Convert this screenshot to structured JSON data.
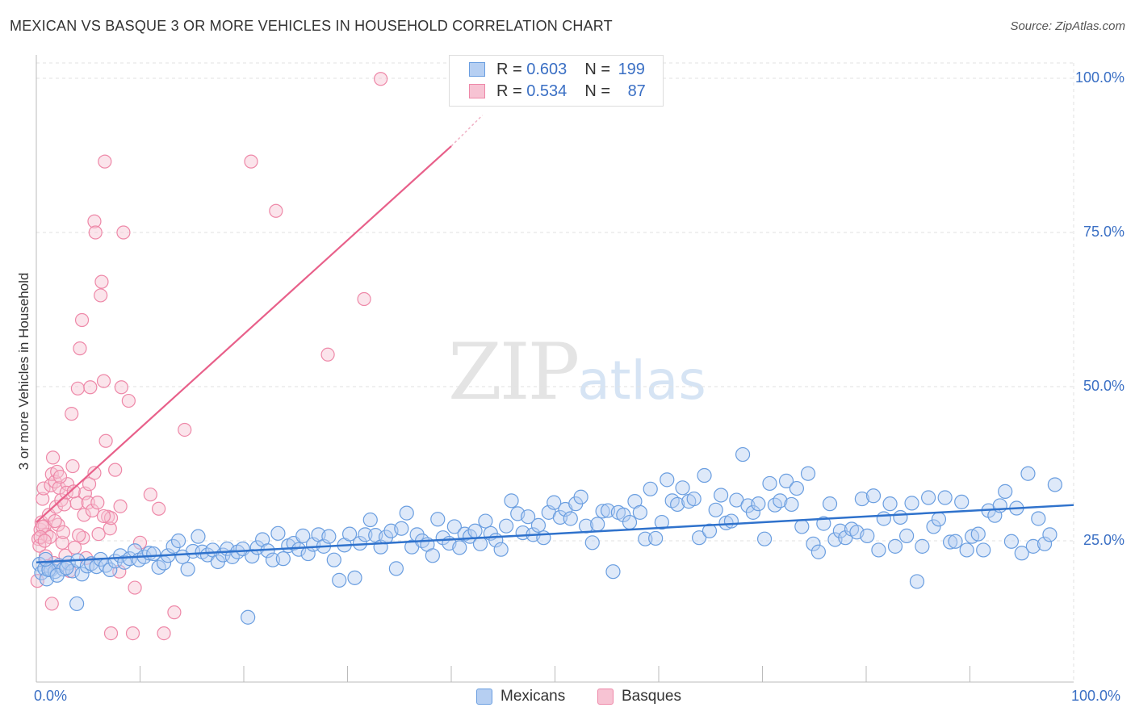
{
  "header": {
    "title": "MEXICAN VS BASQUE 3 OR MORE VEHICLES IN HOUSEHOLD CORRELATION CHART",
    "source": "Source: ZipAtlas.com"
  },
  "watermark": {
    "zip": "ZIP",
    "atlas": "atlas"
  },
  "legend": {
    "rows": [
      {
        "r_label": "R =",
        "r_value": "0.603",
        "n_label": "N =",
        "n_value": "199"
      },
      {
        "r_label": "R =",
        "r_value": "0.534",
        "n_label": "N =",
        "n_value": "87"
      }
    ]
  },
  "colors": {
    "mexicans": "#6a9ee0",
    "mexicans_fill": "#b6cff2",
    "basques": "#ee88a8",
    "basques_fill": "#f7c3d3",
    "blue_line": "#2f72cc",
    "pink_line": "#e8608a",
    "tick_label": "#3a6fc4"
  },
  "chart_data": {
    "type": "scatter",
    "title": "MEXICAN VS BASQUE 3 OR MORE VEHICLES IN HOUSEHOLD CORRELATION CHART",
    "ylabel": "3 or more Vehicles in Household",
    "xlim": [
      0,
      100
    ],
    "ylim": [
      5,
      102
    ],
    "x_tick_labels": [
      "0.0%",
      "100.0%"
    ],
    "y_ticks": [
      25,
      50,
      75,
      100
    ],
    "y_tick_labels": [
      "25.0%",
      "50.0%",
      "75.0%",
      "100.0%"
    ],
    "grid": "horizontal dashed",
    "legend_position": "top-center",
    "series": [
      {
        "name": "Mexicans",
        "R": 0.603,
        "N": 199,
        "trend": {
          "x": [
            0,
            100
          ],
          "y": [
            21.5,
            30.8
          ]
        },
        "points": [
          [
            0.3,
            21.2
          ],
          [
            0.5,
            19.8
          ],
          [
            0.8,
            20.5
          ],
          [
            1.0,
            18.8
          ],
          [
            1.4,
            20.3
          ],
          [
            1.8,
            20.0
          ],
          [
            2.2,
            21.0
          ],
          [
            2.6,
            20.4
          ],
          [
            3.1,
            21.4
          ],
          [
            3.5,
            20.1
          ],
          [
            4.0,
            21.8
          ],
          [
            4.4,
            19.6
          ],
          [
            4.9,
            20.9
          ],
          [
            5.3,
            21.3
          ],
          [
            5.8,
            20.8
          ],
          [
            6.2,
            22.0
          ],
          [
            6.7,
            21.0
          ],
          [
            7.1,
            20.3
          ],
          [
            7.6,
            21.7
          ],
          [
            8.1,
            22.6
          ],
          [
            8.5,
            21.5
          ],
          [
            9.0,
            22.1
          ],
          [
            9.5,
            23.4
          ],
          [
            9.9,
            21.9
          ],
          [
            10.4,
            22.4
          ],
          [
            10.9,
            23.0
          ],
          [
            11.3,
            22.9
          ],
          [
            11.8,
            20.7
          ],
          [
            12.3,
            21.4
          ],
          [
            12.7,
            22.6
          ],
          [
            13.2,
            24.1
          ],
          [
            13.7,
            25.0
          ],
          [
            14.1,
            22.4
          ],
          [
            14.6,
            20.4
          ],
          [
            15.1,
            23.3
          ],
          [
            15.6,
            25.7
          ],
          [
            16.0,
            23.2
          ],
          [
            16.5,
            22.7
          ],
          [
            17.0,
            23.5
          ],
          [
            17.5,
            21.6
          ],
          [
            18.0,
            22.7
          ],
          [
            18.4,
            23.7
          ],
          [
            18.9,
            22.4
          ],
          [
            19.4,
            23.2
          ],
          [
            19.9,
            23.7
          ],
          [
            20.4,
            12.6
          ],
          [
            20.8,
            22.5
          ],
          [
            21.3,
            23.9
          ],
          [
            21.8,
            25.2
          ],
          [
            22.3,
            23.4
          ],
          [
            22.8,
            21.9
          ],
          [
            23.3,
            26.2
          ],
          [
            23.8,
            22.1
          ],
          [
            24.3,
            24.2
          ],
          [
            24.8,
            24.6
          ],
          [
            25.3,
            23.6
          ],
          [
            25.7,
            25.8
          ],
          [
            26.2,
            22.9
          ],
          [
            26.7,
            24.4
          ],
          [
            27.2,
            26.0
          ],
          [
            27.7,
            24.1
          ],
          [
            28.2,
            25.7
          ],
          [
            28.7,
            21.9
          ],
          [
            29.2,
            18.6
          ],
          [
            29.7,
            24.3
          ],
          [
            30.2,
            26.1
          ],
          [
            30.7,
            19.0
          ],
          [
            31.2,
            24.6
          ],
          [
            31.7,
            26.0
          ],
          [
            32.2,
            28.4
          ],
          [
            32.7,
            25.9
          ],
          [
            33.2,
            24.0
          ],
          [
            33.7,
            25.6
          ],
          [
            34.2,
            26.6
          ],
          [
            34.7,
            20.5
          ],
          [
            35.2,
            27.0
          ],
          [
            35.7,
            29.5
          ],
          [
            36.2,
            24.0
          ],
          [
            36.7,
            26.0
          ],
          [
            37.2,
            25.0
          ],
          [
            37.7,
            24.4
          ],
          [
            38.2,
            22.6
          ],
          [
            38.7,
            28.5
          ],
          [
            39.2,
            25.5
          ],
          [
            39.8,
            24.6
          ],
          [
            40.3,
            27.3
          ],
          [
            40.8,
            23.9
          ],
          [
            41.3,
            26.1
          ],
          [
            41.8,
            25.7
          ],
          [
            42.3,
            26.6
          ],
          [
            42.8,
            24.5
          ],
          [
            43.3,
            28.2
          ],
          [
            43.8,
            26.2
          ],
          [
            44.3,
            25.1
          ],
          [
            44.8,
            23.6
          ],
          [
            45.3,
            27.4
          ],
          [
            45.8,
            31.5
          ],
          [
            46.4,
            29.4
          ],
          [
            46.9,
            26.3
          ],
          [
            47.4,
            28.9
          ],
          [
            47.9,
            26.0
          ],
          [
            48.4,
            27.5
          ],
          [
            48.9,
            25.5
          ],
          [
            49.4,
            29.6
          ],
          [
            49.9,
            31.2
          ],
          [
            50.5,
            28.8
          ],
          [
            51.0,
            30.1
          ],
          [
            51.5,
            28.6
          ],
          [
            52.0,
            31.0
          ],
          [
            52.5,
            32.1
          ],
          [
            53.0,
            27.4
          ],
          [
            53.6,
            24.7
          ],
          [
            54.1,
            27.7
          ],
          [
            54.6,
            29.8
          ],
          [
            55.1,
            29.9
          ],
          [
            55.6,
            20.0
          ],
          [
            56.1,
            29.6
          ],
          [
            56.6,
            29.2
          ],
          [
            57.2,
            28.0
          ],
          [
            57.7,
            31.4
          ],
          [
            58.2,
            29.6
          ],
          [
            58.7,
            25.3
          ],
          [
            59.2,
            33.4
          ],
          [
            59.7,
            25.4
          ],
          [
            60.3,
            28.0
          ],
          [
            60.8,
            34.9
          ],
          [
            61.3,
            31.5
          ],
          [
            61.8,
            30.9
          ],
          [
            62.3,
            33.6
          ],
          [
            62.9,
            31.4
          ],
          [
            63.4,
            31.8
          ],
          [
            63.9,
            25.5
          ],
          [
            64.4,
            35.6
          ],
          [
            64.9,
            26.6
          ],
          [
            65.5,
            30.0
          ],
          [
            66.0,
            32.4
          ],
          [
            66.5,
            27.9
          ],
          [
            67.0,
            28.2
          ],
          [
            67.5,
            31.6
          ],
          [
            68.1,
            39.0
          ],
          [
            68.6,
            30.7
          ],
          [
            69.1,
            29.6
          ],
          [
            69.6,
            31.0
          ],
          [
            70.2,
            25.3
          ],
          [
            70.7,
            34.3
          ],
          [
            71.2,
            30.8
          ],
          [
            71.7,
            31.5
          ],
          [
            72.3,
            34.7
          ],
          [
            72.8,
            30.9
          ],
          [
            73.3,
            33.5
          ],
          [
            73.8,
            27.3
          ],
          [
            74.4,
            35.9
          ],
          [
            74.9,
            24.5
          ],
          [
            75.4,
            23.2
          ],
          [
            75.9,
            27.8
          ],
          [
            76.5,
            31.0
          ],
          [
            77.0,
            25.2
          ],
          [
            77.5,
            26.6
          ],
          [
            78.0,
            25.5
          ],
          [
            78.6,
            26.9
          ],
          [
            79.1,
            26.4
          ],
          [
            79.6,
            31.8
          ],
          [
            80.1,
            25.8
          ],
          [
            80.7,
            32.3
          ],
          [
            81.2,
            23.5
          ],
          [
            81.7,
            28.6
          ],
          [
            82.3,
            31.0
          ],
          [
            82.8,
            24.1
          ],
          [
            83.3,
            28.8
          ],
          [
            83.9,
            25.8
          ],
          [
            84.4,
            31.1
          ],
          [
            84.9,
            18.4
          ],
          [
            85.4,
            24.1
          ],
          [
            86.0,
            32.0
          ],
          [
            86.5,
            27.3
          ],
          [
            87.0,
            28.5
          ],
          [
            87.6,
            32.0
          ],
          [
            88.1,
            24.8
          ],
          [
            88.6,
            24.9
          ],
          [
            89.2,
            31.3
          ],
          [
            89.7,
            23.5
          ],
          [
            90.2,
            25.7
          ],
          [
            90.8,
            26.1
          ],
          [
            91.3,
            23.5
          ],
          [
            91.8,
            29.9
          ],
          [
            92.4,
            29.1
          ],
          [
            92.9,
            30.7
          ],
          [
            93.4,
            33.0
          ],
          [
            94.0,
            24.9
          ],
          [
            94.5,
            30.3
          ],
          [
            95.0,
            23.0
          ],
          [
            95.6,
            35.9
          ],
          [
            96.1,
            24.1
          ],
          [
            96.6,
            28.6
          ],
          [
            97.2,
            24.5
          ],
          [
            97.7,
            26.0
          ],
          [
            98.2,
            34.1
          ],
          [
            1.2,
            20.3
          ],
          [
            2.0,
            19.4
          ],
          [
            0.9,
            22.0
          ],
          [
            2.9,
            20.6
          ],
          [
            3.9,
            14.8
          ]
        ]
      },
      {
        "name": "Basques",
        "R": 0.534,
        "N": 87,
        "trend": {
          "x": [
            0,
            40
          ],
          "y": [
            28.0,
            89.0
          ],
          "dashed_extension_to": [
            43,
            94
          ]
        },
        "points": [
          [
            0.1,
            18.5
          ],
          [
            0.2,
            25.3
          ],
          [
            0.3,
            24.2
          ],
          [
            0.4,
            26.8
          ],
          [
            0.5,
            28.0
          ],
          [
            0.6,
            31.8
          ],
          [
            0.7,
            33.5
          ],
          [
            0.8,
            27.4
          ],
          [
            0.9,
            22.5
          ],
          [
            1.0,
            26.0
          ],
          [
            1.2,
            29.2
          ],
          [
            1.3,
            25.6
          ],
          [
            1.4,
            34.0
          ],
          [
            1.5,
            35.8
          ],
          [
            1.6,
            38.5
          ],
          [
            1.7,
            21.4
          ],
          [
            1.8,
            34.6
          ],
          [
            1.9,
            30.5
          ],
          [
            2.0,
            36.2
          ],
          [
            2.1,
            27.6
          ],
          [
            2.2,
            33.6
          ],
          [
            2.4,
            31.6
          ],
          [
            2.5,
            24.7
          ],
          [
            2.6,
            26.4
          ],
          [
            2.8,
            22.6
          ],
          [
            3.0,
            34.2
          ],
          [
            3.2,
            20.1
          ],
          [
            3.4,
            45.6
          ],
          [
            3.5,
            37.1
          ],
          [
            3.7,
            23.9
          ],
          [
            3.9,
            31.1
          ],
          [
            4.0,
            49.7
          ],
          [
            4.2,
            56.2
          ],
          [
            4.4,
            60.8
          ],
          [
            4.5,
            25.5
          ],
          [
            4.6,
            29.2
          ],
          [
            4.7,
            32.7
          ],
          [
            4.8,
            22.2
          ],
          [
            5.0,
            31.2
          ],
          [
            5.1,
            34.2
          ],
          [
            5.2,
            49.9
          ],
          [
            5.4,
            29.9
          ],
          [
            5.6,
            76.8
          ],
          [
            5.7,
            75.0
          ],
          [
            5.9,
            31.2
          ],
          [
            6.0,
            26.1
          ],
          [
            6.2,
            64.8
          ],
          [
            6.3,
            67.0
          ],
          [
            6.5,
            50.9
          ],
          [
            6.6,
            86.5
          ],
          [
            6.7,
            41.2
          ],
          [
            6.9,
            28.9
          ],
          [
            7.1,
            27.0
          ],
          [
            7.2,
            28.7
          ],
          [
            7.6,
            36.5
          ],
          [
            8.0,
            20.0
          ],
          [
            8.1,
            30.6
          ],
          [
            8.2,
            49.9
          ],
          [
            8.4,
            75.0
          ],
          [
            8.9,
            47.7
          ],
          [
            9.5,
            17.4
          ],
          [
            10.0,
            24.7
          ],
          [
            11.0,
            32.5
          ],
          [
            11.8,
            30.2
          ],
          [
            12.3,
            10.0
          ],
          [
            13.3,
            13.4
          ],
          [
            14.3,
            43.0
          ],
          [
            20.7,
            86.5
          ],
          [
            23.1,
            78.5
          ],
          [
            28.1,
            55.2
          ],
          [
            31.6,
            64.2
          ],
          [
            33.2,
            99.9
          ],
          [
            2.9,
            32.8
          ],
          [
            1.1,
            20.9
          ],
          [
            0.6,
            27.3
          ],
          [
            2.3,
            35.4
          ],
          [
            1.8,
            28.2
          ],
          [
            0.4,
            25.6
          ],
          [
            3.6,
            33.0
          ],
          [
            5.6,
            36.0
          ],
          [
            4.1,
            25.9
          ],
          [
            2.7,
            30.9
          ],
          [
            6.5,
            29.0
          ],
          [
            1.5,
            14.8
          ],
          [
            7.2,
            10.0
          ],
          [
            9.3,
            10.0
          ],
          [
            0.8,
            25.0
          ]
        ]
      }
    ]
  },
  "bottom_legend": {
    "items": [
      "Mexicans",
      "Basques"
    ]
  }
}
